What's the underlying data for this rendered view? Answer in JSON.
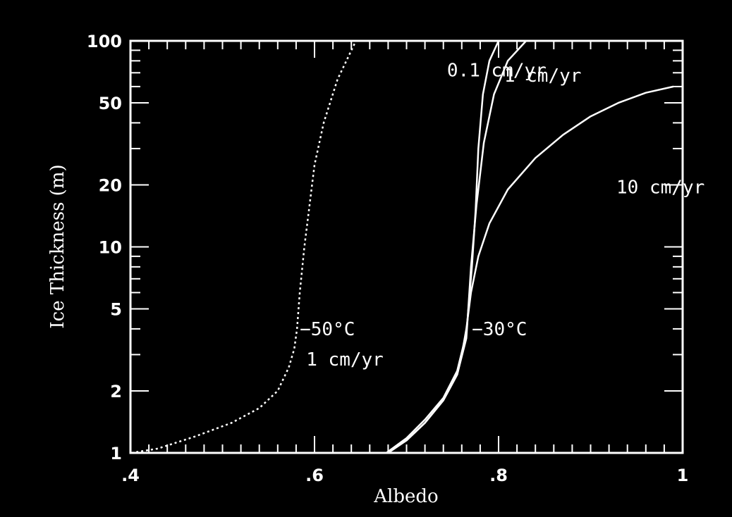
{
  "chart_data": {
    "type": "line",
    "xlabel": "Albedo",
    "ylabel": "Ice Thickness (m)",
    "xlim": [
      0.4,
      1.0
    ],
    "ylim": [
      1,
      100
    ],
    "yscale": "log",
    "grid": false,
    "colors": {
      "background": "#000000",
      "foreground": "#ffffff"
    },
    "x_ticks": [
      {
        "value": 0.4,
        "label": ".4"
      },
      {
        "value": 0.6,
        "label": ".6"
      },
      {
        "value": 0.8,
        "label": ".8"
      },
      {
        "value": 1.0,
        "label": "1"
      }
    ],
    "y_ticks": [
      {
        "value": 1,
        "label": "1"
      },
      {
        "value": 2,
        "label": "2"
      },
      {
        "value": 5,
        "label": "5"
      },
      {
        "value": 10,
        "label": "10"
      },
      {
        "value": 20,
        "label": "20"
      },
      {
        "value": 50,
        "label": "50"
      },
      {
        "value": 100,
        "label": "100"
      }
    ],
    "series": [
      {
        "style": "dotted",
        "x": [
          0.401,
          0.43,
          0.47,
          0.51,
          0.54,
          0.56,
          0.572,
          0.578,
          0.581,
          0.584,
          0.589,
          0.593,
          0.6,
          0.61,
          0.625,
          0.645
        ],
        "y": [
          1.0,
          1.05,
          1.2,
          1.4,
          1.65,
          2.0,
          2.6,
          3.2,
          4.0,
          6.0,
          10.0,
          14.0,
          25.0,
          40.0,
          65.0,
          100.0
        ]
      },
      {
        "style": "solid",
        "x": [
          0.678,
          0.7,
          0.72,
          0.74,
          0.755,
          0.765,
          0.771,
          0.775,
          0.778,
          0.783,
          0.79,
          0.8
        ],
        "y": [
          1.0,
          1.18,
          1.45,
          1.85,
          2.5,
          3.8,
          8.0,
          15.0,
          30.0,
          55.0,
          80.0,
          100.0
        ]
      },
      {
        "style": "solid",
        "x": [
          0.678,
          0.7,
          0.72,
          0.74,
          0.755,
          0.765,
          0.77,
          0.776,
          0.784,
          0.795,
          0.81,
          0.83
        ],
        "y": [
          1.0,
          1.15,
          1.4,
          1.8,
          2.4,
          3.6,
          8.0,
          16.0,
          32.0,
          55.0,
          80.0,
          100.0
        ]
      },
      {
        "style": "solid",
        "x": [
          0.68,
          0.7,
          0.72,
          0.74,
          0.755,
          0.76,
          0.765,
          0.77,
          0.778,
          0.79,
          0.81,
          0.84,
          0.87,
          0.9,
          0.93,
          0.96,
          0.99
        ],
        "y": [
          1.0,
          1.15,
          1.4,
          1.8,
          2.4,
          3.0,
          4.0,
          6.0,
          9.0,
          13.0,
          19.0,
          27.0,
          35.0,
          43.0,
          50.0,
          56.0,
          60.0
        ]
      }
    ],
    "annotations": [
      {
        "text": "0.1 cm/yr",
        "x": 0.744,
        "y": 72
      },
      {
        "text": "1 cm/yr",
        "x": 0.806,
        "y": 68
      },
      {
        "text": "10 cm/yr",
        "x": 0.928,
        "y": 19.5
      },
      {
        "text": "−30°C",
        "x": 0.771,
        "y": 4.0
      },
      {
        "text": "−50°C",
        "x": 0.584,
        "y": 4.0
      },
      {
        "text": "1 cm/yr",
        "x": 0.591,
        "y": 2.85
      }
    ]
  }
}
